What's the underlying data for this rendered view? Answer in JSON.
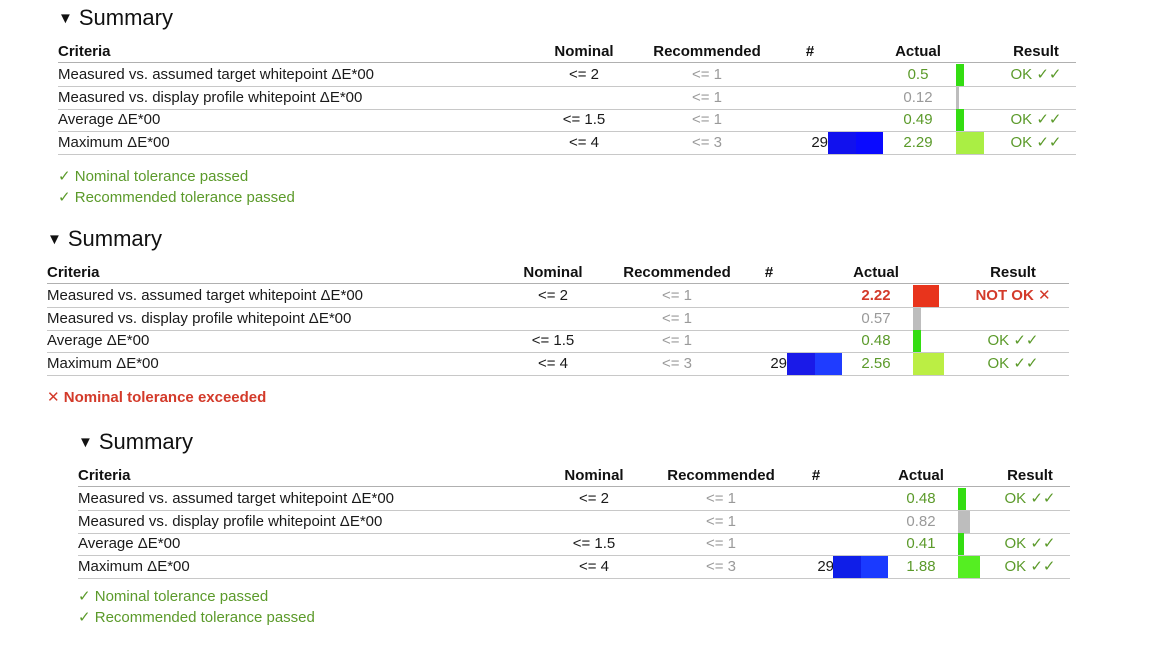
{
  "sections": [
    {
      "title": "Summary",
      "headers": {
        "criteria": "Criteria",
        "nominal": "Nominal",
        "recommended": "Recommended",
        "count": "#",
        "actual": "Actual",
        "result": "Result"
      },
      "rows": [
        {
          "criteria": "Measured vs. assumed target whitepoint ΔE*00",
          "nominal": "<= 2",
          "recommended": "<= 1",
          "count": "",
          "actual": "0.5",
          "actual_status": "ok",
          "bar_color": "#33dd11",
          "result": "OK ✓✓",
          "result_status": "ok"
        },
        {
          "criteria": "Measured vs. display profile whitepoint ΔE*00",
          "nominal": "",
          "recommended": "<= 1",
          "count": "",
          "actual": "0.12",
          "actual_status": "neutral",
          "bar_color": "#bdbdbd",
          "result": "",
          "result_status": "none"
        },
        {
          "criteria": "Average ΔE*00",
          "nominal": "<= 1.5",
          "recommended": "<= 1",
          "count": "",
          "actual": "0.49",
          "actual_status": "ok",
          "bar_color": "#33dd11",
          "result": "OK ✓✓",
          "result_status": "ok"
        },
        {
          "criteria": "Maximum ΔE*00",
          "nominal": "<= 4",
          "recommended": "<= 3",
          "count": "29",
          "patch_colors": [
            "#1111ee",
            "#0a0aff"
          ],
          "actual": "2.29",
          "actual_status": "ok",
          "bar_color": "#aaee44",
          "result": "OK ✓✓",
          "result_status": "ok"
        }
      ],
      "notes": [
        {
          "text": "✓ Nominal tolerance passed",
          "status": "ok"
        },
        {
          "text": "✓ Recommended tolerance passed",
          "status": "ok"
        }
      ]
    },
    {
      "title": "Summary",
      "headers": {
        "criteria": "Criteria",
        "nominal": "Nominal",
        "recommended": "Recommended",
        "count": "#",
        "actual": "Actual",
        "result": "Result"
      },
      "rows": [
        {
          "criteria": "Measured vs. assumed target whitepoint ΔE*00",
          "nominal": "<= 2",
          "recommended": "<= 1",
          "count": "",
          "actual": "2.22",
          "actual_status": "bad",
          "bar_color": "#e8341c",
          "result": "NOT OK ✕",
          "result_status": "bad"
        },
        {
          "criteria": "Measured vs. display profile whitepoint ΔE*00",
          "nominal": "",
          "recommended": "<= 1",
          "count": "",
          "actual": "0.57",
          "actual_status": "neutral",
          "bar_color": "#bdbdbd",
          "result": "",
          "result_status": "none"
        },
        {
          "criteria": "Average ΔE*00",
          "nominal": "<= 1.5",
          "recommended": "<= 1",
          "count": "",
          "actual": "0.48",
          "actual_status": "ok",
          "bar_color": "#33dd11",
          "result": "OK ✓✓",
          "result_status": "ok"
        },
        {
          "criteria": "Maximum ΔE*00",
          "nominal": "<= 4",
          "recommended": "<= 3",
          "count": "29",
          "patch_colors": [
            "#1a1ae8",
            "#1f3cff"
          ],
          "actual": "2.56",
          "actual_status": "ok",
          "bar_color": "#bbee44",
          "result": "OK ✓✓",
          "result_status": "ok"
        }
      ],
      "notes": [
        {
          "text": "✕ Nominal tolerance exceeded",
          "status": "bad"
        }
      ]
    },
    {
      "title": "Summary",
      "headers": {
        "criteria": "Criteria",
        "nominal": "Nominal",
        "recommended": "Recommended",
        "count": "#",
        "actual": "Actual",
        "result": "Result"
      },
      "rows": [
        {
          "criteria": "Measured vs. assumed target whitepoint ΔE*00",
          "nominal": "<= 2",
          "recommended": "<= 1",
          "count": "",
          "actual": "0.48",
          "actual_status": "ok",
          "bar_color": "#33dd11",
          "result": "OK ✓✓",
          "result_status": "ok"
        },
        {
          "criteria": "Measured vs. display profile whitepoint ΔE*00",
          "nominal": "",
          "recommended": "<= 1",
          "count": "",
          "actual": "0.82",
          "actual_status": "neutral",
          "bar_color": "#bdbdbd",
          "result": "",
          "result_status": "none"
        },
        {
          "criteria": "Average ΔE*00",
          "nominal": "<= 1.5",
          "recommended": "<= 1",
          "count": "",
          "actual": "0.41",
          "actual_status": "ok",
          "bar_color": "#33dd11",
          "result": "OK ✓✓",
          "result_status": "ok"
        },
        {
          "criteria": "Maximum ΔE*00",
          "nominal": "<= 4",
          "recommended": "<= 3",
          "count": "29",
          "patch_colors": [
            "#0f1ee8",
            "#1a3aff"
          ],
          "actual": "1.88",
          "actual_status": "ok",
          "bar_color": "#55ee22",
          "result": "OK ✓✓",
          "result_status": "ok"
        }
      ],
      "notes": [
        {
          "text": "✓ Nominal tolerance passed",
          "status": "ok"
        },
        {
          "text": "✓ Recommended tolerance passed",
          "status": "ok"
        }
      ]
    }
  ]
}
